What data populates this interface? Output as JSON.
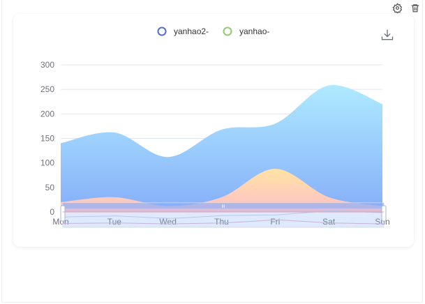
{
  "toolbar": {
    "settings_icon": "gear-icon",
    "delete_icon": "trash-icon",
    "download_icon": "download-icon"
  },
  "colors": {
    "series1_top": "#aeeaff",
    "series1_bottom": "#86aef9",
    "series2_top": "#ffe3a3",
    "series2_bottom": "#ffc0c9",
    "legend1": "#5470c6",
    "legend2": "#91cc75",
    "axis_text": "#6e7079",
    "grid": "#e0e6f1"
  },
  "chart_data": {
    "type": "area",
    "categories": [
      "Mon",
      "Tue",
      "Wed",
      "Thu",
      "Fri",
      "Sat",
      "Sun"
    ],
    "yticks": [
      0,
      50,
      100,
      150,
      200,
      250,
      300
    ],
    "ylim": [
      0,
      300
    ],
    "smooth": true,
    "grid": "horizontal",
    "legend_position": "top-center",
    "series": [
      {
        "name": "yanhao2-",
        "values": [
          140,
          162,
          112,
          168,
          180,
          258,
          220
        ]
      },
      {
        "name": "yanhao-",
        "values": [
          20,
          30,
          12,
          30,
          88,
          30,
          12
        ]
      }
    ],
    "datazoom": {
      "start": 0,
      "end": 100
    }
  }
}
